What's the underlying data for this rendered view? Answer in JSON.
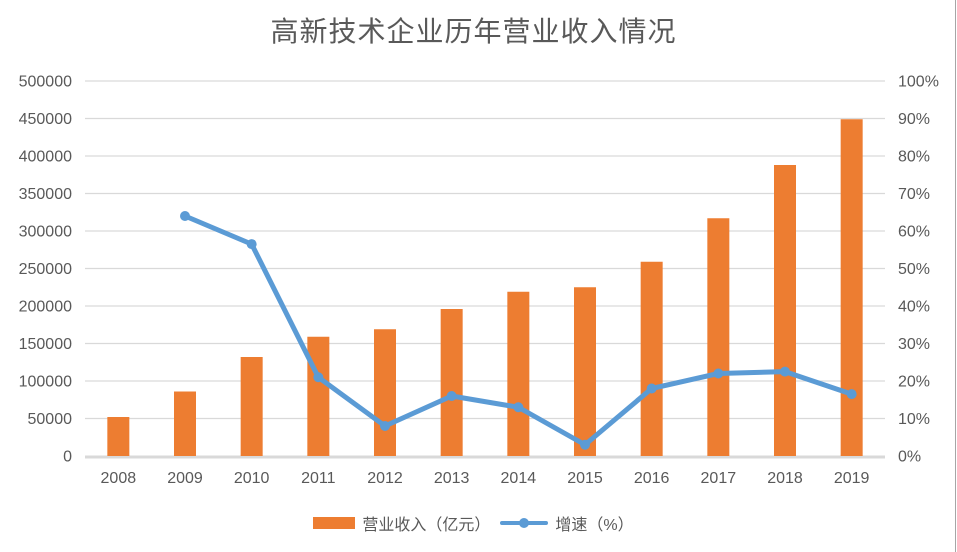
{
  "title": "高新技术企业历年营业收入情况",
  "colors": {
    "bar": "#ED7D31",
    "line": "#5B9BD5",
    "grid": "#D9D9D9",
    "text": "#595959"
  },
  "chart_data": {
    "type": "bar+line combo",
    "title": "高新技术企业历年营业收入情况",
    "categories": [
      "2008",
      "2009",
      "2010",
      "2011",
      "2012",
      "2013",
      "2014",
      "2015",
      "2016",
      "2017",
      "2018",
      "2019"
    ],
    "series": [
      {
        "name": "营业收入（亿元）",
        "type": "bar",
        "axis": "left",
        "color": "#ED7D31",
        "values": [
          52000,
          86000,
          132000,
          159000,
          169000,
          196000,
          219000,
          225000,
          259000,
          317000,
          388000,
          449000
        ]
      },
      {
        "name": "增速（%）",
        "type": "line",
        "axis": "right",
        "color": "#5B9BD5",
        "values": [
          null,
          64,
          56.5,
          21,
          8,
          16,
          13,
          3,
          18,
          22,
          22.5,
          16.5
        ]
      }
    ],
    "left_axis": {
      "min": 0,
      "max": 500000,
      "step": 50000,
      "tick_labels": [
        "0",
        "50000",
        "100000",
        "150000",
        "200000",
        "250000",
        "300000",
        "350000",
        "400000",
        "450000",
        "500000"
      ]
    },
    "right_axis": {
      "min": 0,
      "max": 100,
      "step": 10,
      "tick_labels": [
        "0%",
        "10%",
        "20%",
        "30%",
        "40%",
        "50%",
        "60%",
        "70%",
        "80%",
        "90%",
        "100%"
      ]
    },
    "grid": true,
    "legend_position": "bottom"
  }
}
